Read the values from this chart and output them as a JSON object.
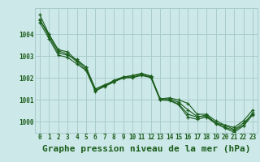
{
  "title": "Graphe pression niveau de la mer (hPa)",
  "background_color": "#cce8e8",
  "grid_color": "#aacccc",
  "line_color": "#1a5c1a",
  "xlim": [
    -0.5,
    23.5
  ],
  "ylim": [
    999.5,
    1005.2
  ],
  "xtick_labels": [
    "0",
    "1",
    "2",
    "3",
    "4",
    "5",
    "6",
    "7",
    "8",
    "9",
    "10",
    "11",
    "12",
    "13",
    "14",
    "15",
    "16",
    "17",
    "18",
    "19",
    "20",
    "21",
    "22",
    "23"
  ],
  "ytick_values": [
    1000,
    1001,
    1002,
    1003,
    1004
  ],
  "series": [
    [
      1004.9,
      1004.0,
      1003.3,
      1003.2,
      1002.8,
      1002.5,
      1001.5,
      1001.7,
      1001.85,
      1002.0,
      1002.05,
      1002.15,
      1002.05,
      1001.05,
      1001.1,
      1001.0,
      1000.85,
      1000.35,
      1000.35,
      1000.05,
      999.85,
      999.75,
      1000.05,
      1000.55
    ],
    [
      1004.7,
      1003.9,
      1003.15,
      1003.05,
      1002.85,
      1002.5,
      1001.5,
      1001.65,
      1001.9,
      1002.05,
      1002.1,
      1002.2,
      1002.1,
      1001.05,
      1001.05,
      1000.9,
      1000.55,
      1000.25,
      1000.25,
      999.95,
      999.85,
      999.65,
      999.95,
      1000.35
    ],
    [
      1004.65,
      1004.0,
      1003.25,
      1003.1,
      1002.75,
      1002.4,
      1001.4,
      1001.65,
      1001.85,
      1002.05,
      1002.12,
      1002.22,
      1002.08,
      1001.0,
      1001.0,
      1000.82,
      1000.35,
      1000.22,
      1000.32,
      999.95,
      999.75,
      999.62,
      999.85,
      1000.42
    ],
    [
      1004.55,
      1003.8,
      1003.05,
      1002.95,
      1002.65,
      1002.35,
      1001.42,
      1001.62,
      1001.82,
      1002.02,
      1002.02,
      1002.12,
      1002.02,
      1001.0,
      1000.98,
      1000.78,
      1000.22,
      1000.12,
      1000.22,
      999.92,
      999.72,
      999.52,
      999.82,
      1000.32
    ]
  ],
  "marker": "+",
  "marker_size": 3.5,
  "line_width": 0.8,
  "title_fontsize": 8,
  "tick_fontsize": 5.5,
  "ylabel_fontsize": 5.5
}
